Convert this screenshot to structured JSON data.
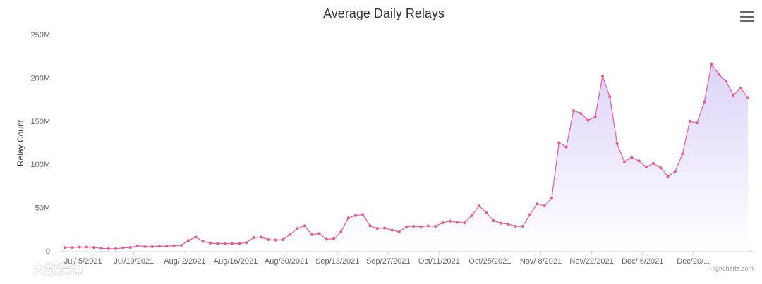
{
  "menu_icon": "hamburger-menu-icon",
  "credits": "Highcharts.com",
  "watermark": {
    "icon": "logo-icon",
    "text": "大数跨境"
  },
  "colors": {
    "line": "#e55a95",
    "area_top": "#d8cff7",
    "area_bottom": "#ffffff",
    "axis_labels": "#666666",
    "axis_line": "#ccd6eb"
  },
  "chart_data": {
    "type": "area",
    "title": "Average Daily Relays",
    "ylabel": "Relay Count",
    "xlabel": "",
    "ylim": [
      0,
      250000000
    ],
    "grid": false,
    "legend": "none",
    "y_tick_values": [
      0,
      50000000,
      100000000,
      150000000,
      200000000,
      250000000
    ],
    "y_tick_labels": [
      "0",
      "50M",
      "100M",
      "150M",
      "200M",
      "250M"
    ],
    "x_tick_labels": [
      "Jul/ 5/2021",
      "Jul/19/2021",
      "Aug/ 2/2021",
      "Aug/16/2021",
      "Aug/30/2021",
      "Sep/13/2021",
      "Sep/27/2021",
      "Oct/11/2021",
      "Oct/25/2021",
      "Nov/ 8/2021",
      "Nov/22/2021",
      "Dec/ 6/2021",
      "Dec/20/..."
    ],
    "x_start": "2021-06-30",
    "x_step_days": 2,
    "series": [
      {
        "values": [
          4000000,
          4000000,
          4500000,
          4500000,
          4000000,
          3000000,
          2500000,
          2500000,
          3500000,
          4000000,
          6000000,
          5000000,
          5000000,
          5500000,
          5500000,
          6000000,
          6500000,
          12000000,
          16000000,
          11000000,
          9000000,
          8500000,
          8500000,
          8500000,
          8500000,
          9500000,
          15500000,
          16000000,
          13000000,
          12500000,
          13000000,
          19000000,
          26000000,
          29000000,
          19000000,
          20000000,
          13500000,
          14000000,
          22000000,
          38000000,
          41000000,
          42000000,
          29000000,
          26000000,
          26500000,
          24000000,
          22000000,
          28000000,
          28500000,
          28000000,
          29000000,
          28500000,
          32500000,
          34500000,
          33000000,
          32500000,
          41000000,
          52000000,
          44000000,
          35000000,
          32000000,
          31000000,
          28500000,
          28500000,
          42000000,
          54500000,
          52000000,
          61000000,
          125000000,
          120000000,
          162000000,
          159000000,
          151000000,
          155000000,
          202000000,
          178000000,
          124000000,
          103000000,
          108000000,
          104000000,
          97000000,
          101000000,
          96000000,
          86000000,
          92000000,
          112000000,
          150000000,
          148000000,
          172000000,
          216000000,
          204000000,
          196000000,
          180000000,
          188000000,
          177000000
        ]
      }
    ]
  }
}
